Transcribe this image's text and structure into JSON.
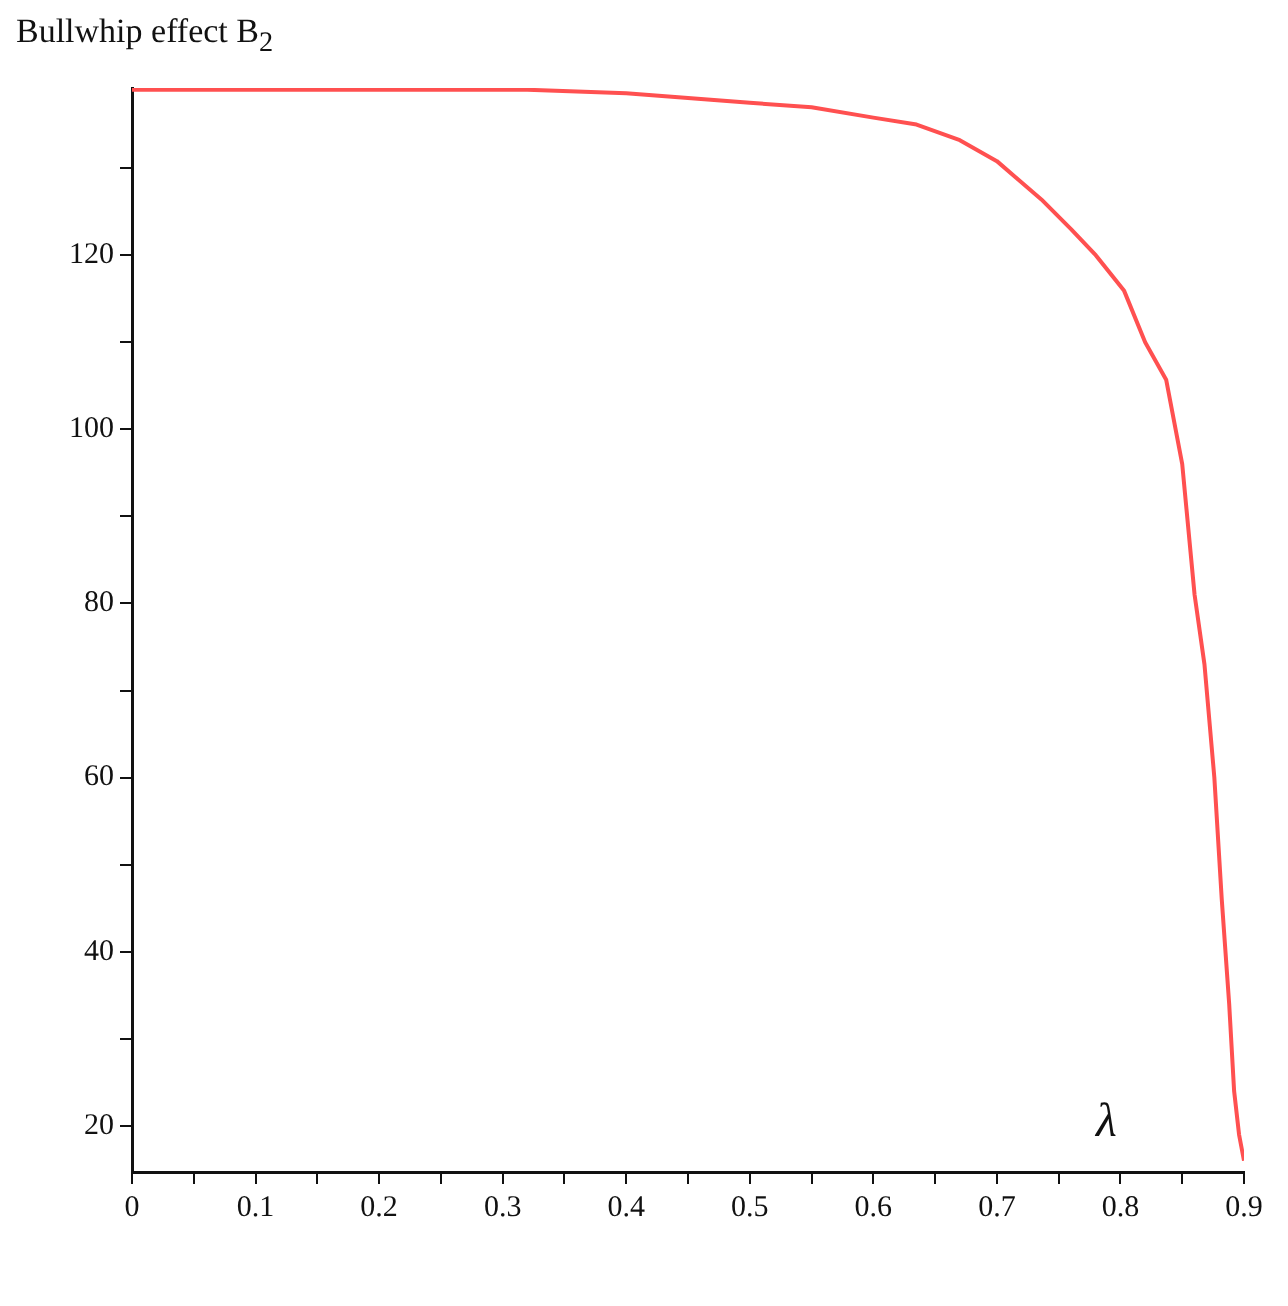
{
  "chart_data": {
    "type": "line",
    "ylabel": "Bullwhip effect B$_{2}$",
    "xlabel": "λ",
    "x": [
      0,
      0.1,
      0.2,
      0.32,
      0.4,
      0.5,
      0.55,
      0.6,
      0.635,
      0.67,
      0.7,
      0.736,
      0.76,
      0.78,
      0.803,
      0.82,
      0.837,
      0.85,
      0.86,
      0.868,
      0.876,
      0.882,
      0.888,
      0.892,
      0.896,
      0.9
    ],
    "series": [
      {
        "color": "#ff5050",
        "values": [
          139,
          139,
          139,
          139,
          138.6,
          137.5,
          137,
          135.8,
          135,
          133.2,
          130.8,
          126.4,
          123,
          120,
          115.9,
          110,
          105.7,
          96,
          81,
          73,
          60,
          46,
          34,
          24,
          19,
          16
        ]
      }
    ],
    "xlim": [
      0,
      0.9
    ],
    "ylim": [
      14.7,
      139.2
    ],
    "xticks": [
      0,
      {
        "value": 0.05,
        "label": null
      },
      0.1,
      {
        "value": 0.15,
        "label": null
      },
      0.2,
      {
        "value": 0.25,
        "label": null
      },
      0.3,
      {
        "value": 0.35,
        "label": null
      },
      0.4,
      {
        "value": 0.45,
        "label": null
      },
      0.5,
      {
        "value": 0.55,
        "label": null
      },
      0.6,
      {
        "value": 0.65,
        "label": null
      },
      0.7,
      {
        "value": 0.75,
        "label": null
      },
      0.8,
      {
        "value": 0.85,
        "label": null
      },
      0.9
    ],
    "yticks": [
      20,
      {
        "value": 30,
        "label": null
      },
      40,
      {
        "value": 50,
        "label": null
      },
      60,
      {
        "value": 70,
        "label": null
      },
      80,
      {
        "value": 90,
        "label": null
      },
      100,
      {
        "value": 110,
        "label": null
      },
      120,
      {
        "value": 130,
        "label": null
      }
    ],
    "grid": false,
    "legend": false,
    "marker": "none",
    "line_style": "solid"
  }
}
